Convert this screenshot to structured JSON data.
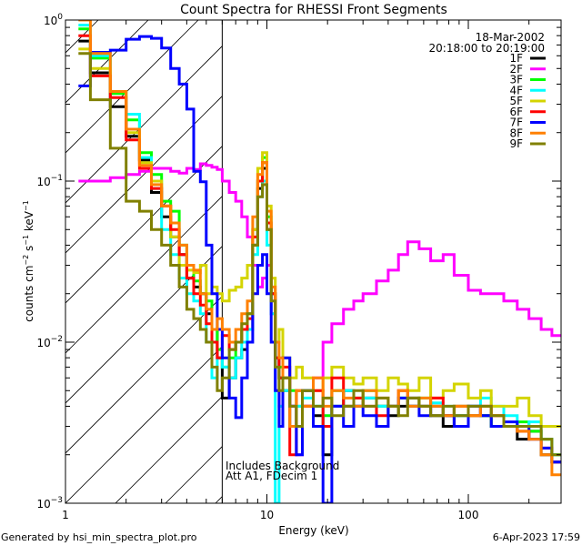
{
  "chart_data": {
    "type": "line",
    "title": "Count Spectra for RHESSI Front Segments",
    "xlabel": "Energy (keV)",
    "ylabel": "counts cm-2 s-1 keV-1",
    "xscale": "log",
    "yscale": "log",
    "xlim": [
      1,
      290
    ],
    "ylim": [
      0.001,
      1
    ],
    "x_tick_labels": [
      {
        "value": 1,
        "label": "1"
      },
      {
        "value": 10,
        "label": "10"
      },
      {
        "value": 100,
        "label": "100"
      }
    ],
    "y_tick_labels": [
      {
        "value": 1,
        "base": "10",
        "exp": "0"
      },
      {
        "value": 0.1,
        "base": "10",
        "exp": "−1"
      },
      {
        "value": 0.01,
        "base": "10",
        "exp": "−2"
      },
      {
        "value": 0.001,
        "base": "10",
        "exp": "−3"
      }
    ],
    "ylabel_parts": {
      "a": "counts cm",
      "e1": "−2",
      "b": " s",
      "e2": "−1",
      "c": " keV",
      "e3": "−1"
    },
    "date": "18-Mar-2002",
    "time_range": "20:18:00 to 20:19:00",
    "annotations": [
      "Includes Background",
      "Att A1, FDecim 1"
    ],
    "hatched_region_kev": [
      1,
      6
    ],
    "legend_placement": "top-right",
    "energy_edges": [
      1.16,
      1.33,
      1.67,
      2.0,
      2.33,
      2.67,
      3.0,
      3.33,
      3.67,
      4.0,
      4.33,
      4.67,
      5.0,
      5.33,
      5.67,
      6.0,
      6.5,
      7.0,
      7.5,
      8.0,
      8.5,
      9.0,
      9.5,
      10.0,
      10.5,
      11.0,
      11.5,
      12.0,
      13,
      14,
      15,
      17,
      19,
      21,
      24,
      27,
      30,
      35,
      40,
      45,
      50,
      57,
      65,
      75,
      85,
      100,
      115,
      130,
      150,
      175,
      200,
      230,
      260,
      290
    ],
    "series": [
      {
        "name": "1F",
        "color": "#000000",
        "values": [
          0.74,
          0.47,
          0.29,
          0.19,
          0.135,
          0.085,
          0.06,
          0.045,
          0.035,
          0.025,
          0.022,
          0.02,
          0.015,
          0.012,
          0.008,
          0.0045,
          0.006,
          0.008,
          0.009,
          0.012,
          0.04,
          0.09,
          0.12,
          0.05,
          0.02,
          0.008,
          0.006,
          0.005,
          0.004,
          0.003,
          0.004,
          0.0035,
          0.002,
          0.004,
          0.005,
          0.004,
          0.0045,
          0.004,
          0.0035,
          0.004,
          0.0045,
          0.004,
          0.0035,
          0.003,
          0.0035,
          0.004,
          0.0035,
          0.003,
          0.003,
          0.0025,
          0.0028,
          0.002,
          0.0018
        ]
      },
      {
        "name": "2F",
        "color": "#ff00ff",
        "values": [
          0.1,
          0.1,
          0.105,
          0.11,
          0.115,
          0.12,
          0.12,
          0.115,
          0.112,
          0.12,
          0.118,
          0.128,
          0.125,
          0.122,
          0.118,
          0.1,
          0.085,
          0.075,
          0.06,
          0.045,
          0.03,
          0.022,
          0.025,
          0.03,
          0.015,
          0.005,
          0.004,
          0.006,
          0.004,
          0.002,
          0.004,
          0.006,
          0.01,
          0.013,
          0.016,
          0.018,
          0.02,
          0.024,
          0.028,
          0.035,
          0.042,
          0.038,
          0.032,
          0.035,
          0.026,
          0.021,
          0.02,
          0.02,
          0.018,
          0.016,
          0.014,
          0.012,
          0.011
        ]
      },
      {
        "name": "3F",
        "color": "#00ff00",
        "values": [
          0.88,
          0.58,
          0.35,
          0.24,
          0.15,
          0.11,
          0.075,
          0.065,
          0.04,
          0.03,
          0.024,
          0.02,
          0.018,
          0.012,
          0.009,
          0.007,
          0.008,
          0.01,
          0.012,
          0.015,
          0.05,
          0.1,
          0.14,
          0.06,
          0.02,
          0.008,
          0.007,
          0.006,
          0.005,
          0.004,
          0.005,
          0.004,
          0.0035,
          0.005,
          0.004,
          0.0045,
          0.005,
          0.004,
          0.004,
          0.0045,
          0.004,
          0.0045,
          0.004,
          0.0035,
          0.004,
          0.0035,
          0.0035,
          0.003,
          0.003,
          0.0032,
          0.0028,
          0.0025,
          0.002
        ]
      },
      {
        "name": "4F",
        "color": "#00ffff",
        "values": [
          0.93,
          0.6,
          0.36,
          0.26,
          0.14,
          0.09,
          0.05,
          0.035,
          0.025,
          0.02,
          0.018,
          0.015,
          0.01,
          0.006,
          0.008,
          0.007,
          0.006,
          0.008,
          0.01,
          0.012,
          0.035,
          0.08,
          0.1,
          0.04,
          0.015,
          0.001,
          0.004,
          0.005,
          0.003,
          0.004,
          0.0045,
          0.004,
          0.003,
          0.004,
          0.005,
          0.004,
          0.0045,
          0.004,
          0.004,
          0.0045,
          0.004,
          0.004,
          0.0042,
          0.004,
          0.0035,
          0.004,
          0.0045,
          0.004,
          0.0035,
          0.003,
          0.0032,
          0.0025,
          0.002
        ]
      },
      {
        "name": "5F",
        "color": "#d4d400",
        "values": [
          0.66,
          0.5,
          0.36,
          0.2,
          0.13,
          0.1,
          0.07,
          0.045,
          0.03,
          0.028,
          0.027,
          0.03,
          0.02,
          0.022,
          0.02,
          0.018,
          0.021,
          0.022,
          0.025,
          0.03,
          0.05,
          0.12,
          0.15,
          0.07,
          0.025,
          0.01,
          0.012,
          0.008,
          0.006,
          0.007,
          0.006,
          0.005,
          0.006,
          0.007,
          0.006,
          0.0055,
          0.006,
          0.005,
          0.006,
          0.0055,
          0.005,
          0.006,
          0.0045,
          0.005,
          0.0055,
          0.0045,
          0.005,
          0.004,
          0.004,
          0.0045,
          0.0035,
          0.003,
          0.003
        ]
      },
      {
        "name": "6F",
        "color": "#ff0000",
        "values": [
          0.8,
          0.45,
          0.33,
          0.18,
          0.12,
          0.09,
          0.07,
          0.05,
          0.035,
          0.025,
          0.02,
          0.017,
          0.013,
          0.01,
          0.008,
          0.011,
          0.009,
          0.01,
          0.012,
          0.014,
          0.045,
          0.1,
          0.13,
          0.055,
          0.02,
          0.008,
          0.006,
          0.007,
          0.002,
          0.005,
          0.004,
          0.005,
          0.003,
          0.006,
          0.004,
          0.0045,
          0.004,
          0.0035,
          0.004,
          0.005,
          0.004,
          0.004,
          0.0045,
          0.0035,
          0.004,
          0.0035,
          0.004,
          0.0035,
          0.003,
          0.0028,
          0.0025,
          0.0022,
          0.0018
        ]
      },
      {
        "name": "7F",
        "color": "#0000ff",
        "values": [
          0.39,
          0.63,
          0.65,
          0.76,
          0.79,
          0.77,
          0.67,
          0.5,
          0.4,
          0.28,
          0.115,
          0.099,
          0.04,
          0.02,
          0.012,
          0.008,
          0.0045,
          0.0034,
          0.006,
          0.01,
          0.02,
          0.03,
          0.035,
          0.02,
          0.01,
          0.005,
          0.003,
          0.008,
          0.004,
          0.002,
          0.005,
          0.003,
          0.001,
          0.004,
          0.003,
          0.004,
          0.0035,
          0.003,
          0.004,
          0.0045,
          0.004,
          0.0035,
          0.004,
          0.0035,
          0.003,
          0.004,
          0.0035,
          0.003,
          0.0032,
          0.003,
          0.0025,
          0.0022,
          0.0018
        ]
      },
      {
        "name": "8F",
        "color": "#ff8000",
        "values": [
          1.0,
          0.62,
          0.36,
          0.21,
          0.125,
          0.095,
          0.07,
          0.055,
          0.04,
          0.03,
          0.028,
          0.02,
          0.016,
          0.012,
          0.014,
          0.012,
          0.01,
          0.012,
          0.015,
          0.018,
          0.06,
          0.11,
          0.13,
          0.065,
          0.022,
          0.01,
          0.008,
          0.006,
          0.003,
          0.005,
          0.004,
          0.006,
          0.004,
          0.005,
          0.0045,
          0.004,
          0.005,
          0.0045,
          0.004,
          0.005,
          0.004,
          0.0045,
          0.004,
          0.0035,
          0.004,
          0.0035,
          0.004,
          0.0035,
          0.003,
          0.0028,
          0.0025,
          0.002,
          0.0015
        ]
      },
      {
        "name": "9F",
        "color": "#808000",
        "values": [
          0.62,
          0.32,
          0.16,
          0.075,
          0.065,
          0.05,
          0.04,
          0.03,
          0.022,
          0.016,
          0.014,
          0.012,
          0.01,
          0.007,
          0.005,
          0.006,
          0.009,
          0.01,
          0.013,
          0.015,
          0.04,
          0.08,
          0.095,
          0.05,
          0.018,
          0.007,
          0.005,
          0.006,
          0.004,
          0.003,
          0.005,
          0.004,
          0.0045,
          0.0035,
          0.004,
          0.005,
          0.004,
          0.0045,
          0.004,
          0.0035,
          0.0045,
          0.004,
          0.0035,
          0.004,
          0.0035,
          0.004,
          0.004,
          0.0035,
          0.003,
          0.003,
          0.003,
          0.0025,
          0.002
        ]
      }
    ]
  },
  "footer": {
    "generated_by": "Generated by hsi_min_spectra_plot.pro",
    "timestamp": "6-Apr-2023 17:59"
  }
}
